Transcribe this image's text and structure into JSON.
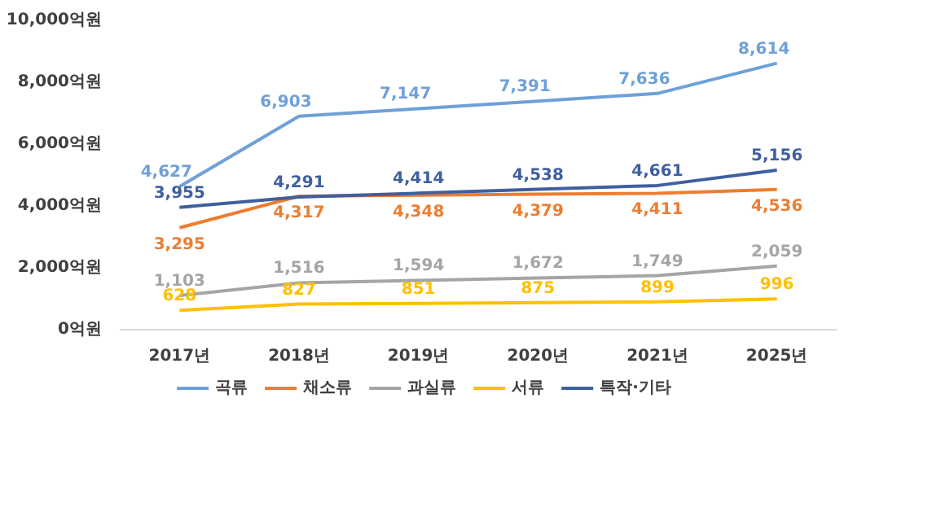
{
  "chart_data": {
    "type": "line",
    "categories": [
      "2017년",
      "2018년",
      "2019년",
      "2020년",
      "2021년",
      "2025년"
    ],
    "series": [
      {
        "name": "곡류",
        "color": "#6fa0d8",
        "values": [
          4627,
          6903,
          7147,
          7391,
          7636,
          8614
        ],
        "value_labels": [
          "4,627",
          "6,903",
          "7,147",
          "7,391",
          "7,636",
          "8,614"
        ]
      },
      {
        "name": "채소류",
        "color": "#ed7d31",
        "values": [
          3295,
          4317,
          4348,
          4379,
          4411,
          4536
        ],
        "value_labels": [
          "3,295",
          "4,317",
          "4,348",
          "4,379",
          "4,411",
          "4,536"
        ]
      },
      {
        "name": "과실류",
        "color": "#a5a5a5",
        "values": [
          1103,
          1516,
          1594,
          1672,
          1749,
          2059
        ],
        "value_labels": [
          "1,103",
          "1,516",
          "1,594",
          "1,672",
          "1,749",
          "2,059"
        ]
      },
      {
        "name": "서류",
        "color": "#ffc000",
        "values": [
          628,
          827,
          851,
          875,
          899,
          996
        ],
        "value_labels": [
          "628",
          "827",
          "851",
          "875",
          "899",
          "996"
        ]
      },
      {
        "name": "특작·기타",
        "color": "#3f5f9f",
        "values": [
          3955,
          4291,
          4414,
          4538,
          4661,
          5156
        ],
        "value_labels": [
          "3,955",
          "4,291",
          "4,414",
          "4,538",
          "4,661",
          "5,156"
        ]
      }
    ],
    "ylim": [
      0,
      10000
    ],
    "yticks": [
      {
        "value": 0,
        "label": "0억원"
      },
      {
        "value": 2000,
        "label": "2,000억원"
      },
      {
        "value": 4000,
        "label": "4,000억원"
      },
      {
        "value": 6000,
        "label": "6,000억원"
      },
      {
        "value": 8000,
        "label": "8,000억원"
      },
      {
        "value": 10000,
        "label": "10,000억원"
      }
    ],
    "legend": "bottom",
    "data_labels": true,
    "grid": false,
    "marker": "none",
    "line_style": "solid"
  }
}
